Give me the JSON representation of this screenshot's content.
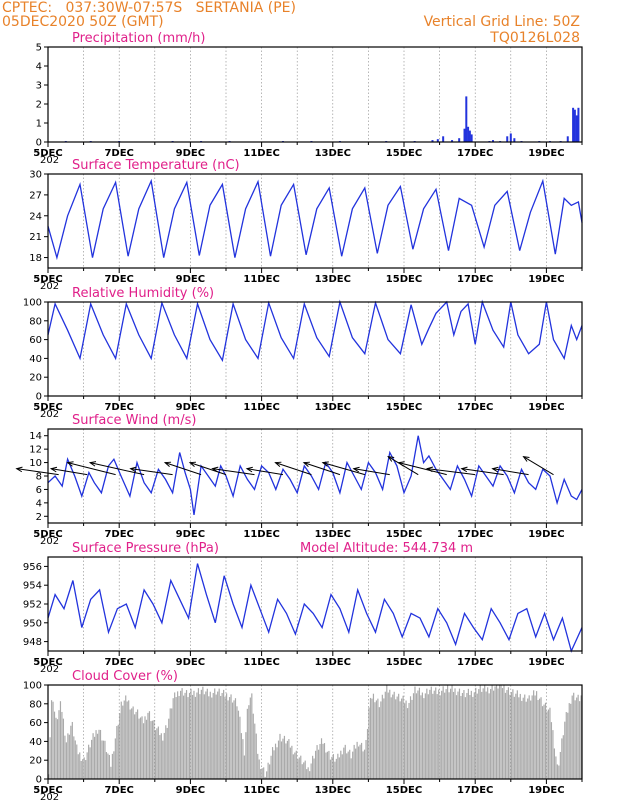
{
  "header": {
    "line1_left": "CPTEC:   037:30W-07:57S   SERTANIA (PE)",
    "line2_left": "05DEC2020 50Z (GMT)",
    "line1_right": "Vertical Grid Line: 50Z",
    "line2_right": "TQ0126L028"
  },
  "x_tick_labels": [
    "5DEC",
    "7DEC",
    "9DEC",
    "11DEC",
    "13DEC",
    "15DEC",
    "17DEC",
    "19DEC"
  ],
  "x_sublabel": "202",
  "colors": {
    "header": "#e8822a",
    "panel_title": "#e0208a",
    "series": "#2233dd",
    "cloud": "#aaaaaa",
    "arrow": "#000000"
  },
  "chart_data": [
    {
      "type": "bar",
      "id": "precip",
      "title": "Precipitation (mm/h)",
      "ylim": [
        0,
        5
      ],
      "yticks": [
        0,
        1,
        2,
        3,
        4,
        5
      ],
      "x_range_days": [
        5,
        20
      ],
      "grid": "vertical dashed",
      "series": [
        {
          "x": [
            5.5,
            6.2,
            7.0,
            8.5,
            9.3,
            10.1,
            11.6,
            12.4,
            13.2,
            14.5,
            15.3,
            15.8,
            15.95,
            16.1,
            16.35,
            16.55,
            16.7,
            16.75,
            16.8,
            16.85,
            16.9,
            17.4,
            17.5,
            17.7,
            17.9,
            18.0,
            18.1,
            18.3,
            18.8,
            19.1,
            19.4,
            19.6,
            19.75,
            19.8,
            19.85,
            19.9
          ],
          "values": [
            0.05,
            0.05,
            0.05,
            0.05,
            0.05,
            0.05,
            0.05,
            0.05,
            0.05,
            0.05,
            0.05,
            0.1,
            0.15,
            0.3,
            0.1,
            0.2,
            0.7,
            2.4,
            0.8,
            0.6,
            0.4,
            0.05,
            0.1,
            0.05,
            0.3,
            0.45,
            0.2,
            0.05,
            0.05,
            0.05,
            0.05,
            0.3,
            1.8,
            1.7,
            1.4,
            1.8
          ]
        }
      ]
    },
    {
      "type": "line",
      "id": "temp",
      "title": "Surface Temperature (nC)",
      "ylim": [
        16.5,
        30
      ],
      "yticks": [
        18,
        21,
        24,
        27,
        30
      ],
      "x_range_days": [
        5,
        20
      ],
      "grid": "vertical dashed",
      "series": [
        {
          "x": [
            5.0,
            5.25,
            5.55,
            5.9,
            6.25,
            6.55,
            6.9,
            7.25,
            7.55,
            7.9,
            8.25,
            8.55,
            8.9,
            9.25,
            9.55,
            9.9,
            10.25,
            10.55,
            10.9,
            11.25,
            11.55,
            11.9,
            12.25,
            12.55,
            12.9,
            13.25,
            13.55,
            13.9,
            14.25,
            14.55,
            14.9,
            15.25,
            15.55,
            15.9,
            16.25,
            16.55,
            16.9,
            17.25,
            17.55,
            17.9,
            18.25,
            18.55,
            18.9,
            19.25,
            19.5,
            19.7,
            19.9,
            20.0
          ],
          "values": [
            22.5,
            18.0,
            24.0,
            28.5,
            18.0,
            25.0,
            28.8,
            18.2,
            25.0,
            29.0,
            18.0,
            25.0,
            28.8,
            18.3,
            25.5,
            28.5,
            18.0,
            25.0,
            28.9,
            18.2,
            25.5,
            28.5,
            18.4,
            25.0,
            28.0,
            18.2,
            25.0,
            28.0,
            18.6,
            25.5,
            28.2,
            19.2,
            25.0,
            27.8,
            19.0,
            26.5,
            25.5,
            19.5,
            25.5,
            27.5,
            19.0,
            24.5,
            29.0,
            18.5,
            26.5,
            25.5,
            26.0,
            23.0
          ]
        }
      ]
    },
    {
      "type": "line",
      "id": "rh",
      "title": "Relative Humidity (%)",
      "ylim": [
        0,
        100
      ],
      "yticks": [
        0,
        20,
        40,
        60,
        80,
        100
      ],
      "x_range_days": [
        5,
        20
      ],
      "grid": "vertical dashed",
      "series": [
        {
          "x": [
            5.0,
            5.2,
            5.55,
            5.9,
            6.2,
            6.55,
            6.9,
            7.2,
            7.55,
            7.9,
            8.2,
            8.55,
            8.9,
            9.2,
            9.55,
            9.9,
            10.2,
            10.55,
            10.9,
            11.2,
            11.55,
            11.9,
            12.2,
            12.55,
            12.9,
            13.2,
            13.55,
            13.9,
            14.2,
            14.55,
            14.9,
            15.2,
            15.5,
            15.7,
            15.9,
            16.2,
            16.4,
            16.6,
            16.8,
            17.0,
            17.2,
            17.5,
            17.8,
            18.0,
            18.2,
            18.5,
            18.8,
            19.0,
            19.2,
            19.5,
            19.7,
            19.85,
            20.0
          ],
          "values": [
            65,
            98,
            70,
            40,
            98,
            65,
            40,
            98,
            65,
            40,
            99,
            65,
            40,
            98,
            60,
            38,
            98,
            60,
            40,
            99,
            62,
            40,
            98,
            62,
            42,
            100,
            62,
            45,
            99,
            60,
            45,
            97,
            55,
            72,
            88,
            100,
            65,
            90,
            98,
            55,
            100,
            70,
            52,
            100,
            65,
            45,
            55,
            100,
            60,
            40,
            75,
            60,
            75
          ]
        }
      ]
    },
    {
      "type": "line",
      "id": "wind",
      "title": "Surface Wind (m/s)",
      "ylim": [
        1,
        15
      ],
      "yticks": [
        2,
        4,
        6,
        8,
        10,
        12,
        14
      ],
      "x_range_days": [
        5,
        20
      ],
      "grid": "vertical dashed",
      "series": [
        {
          "x": [
            5.0,
            5.2,
            5.4,
            5.55,
            5.75,
            5.95,
            6.15,
            6.3,
            6.5,
            6.7,
            6.85,
            7.05,
            7.3,
            7.5,
            7.7,
            7.9,
            8.1,
            8.3,
            8.5,
            8.7,
            8.85,
            9.0,
            9.1,
            9.3,
            9.5,
            9.7,
            9.85,
            10.0,
            10.2,
            10.4,
            10.6,
            10.8,
            11.0,
            11.2,
            11.4,
            11.6,
            11.8,
            12.0,
            12.2,
            12.4,
            12.6,
            12.8,
            13.0,
            13.2,
            13.4,
            13.6,
            13.8,
            14.0,
            14.2,
            14.4,
            14.6,
            14.8,
            15.0,
            15.2,
            15.4,
            15.55,
            15.7,
            15.9,
            16.1,
            16.3,
            16.5,
            16.7,
            16.9,
            17.1,
            17.3,
            17.5,
            17.7,
            17.9,
            18.1,
            18.3,
            18.5,
            18.7,
            18.9,
            19.1,
            19.3,
            19.5,
            19.7,
            19.85,
            20.0
          ],
          "values": [
            7.0,
            8.0,
            6.5,
            10.5,
            8.0,
            5.0,
            8.5,
            7.0,
            5.5,
            9.5,
            10.5,
            8.0,
            5.0,
            10.0,
            7.0,
            5.5,
            9.0,
            7.5,
            5.5,
            11.5,
            8.5,
            6.0,
            2.2,
            9.5,
            8.0,
            6.5,
            9.5,
            8.0,
            5.0,
            9.5,
            7.5,
            6.0,
            9.5,
            8.5,
            6.0,
            9.0,
            7.5,
            5.5,
            9.5,
            8.0,
            6.0,
            10.0,
            8.5,
            5.5,
            10.0,
            8.0,
            6.0,
            10.0,
            8.5,
            6.0,
            11.5,
            9.5,
            5.5,
            8.0,
            14.0,
            10.0,
            11.0,
            9.0,
            7.5,
            6.0,
            9.5,
            7.5,
            5.0,
            9.5,
            8.0,
            6.5,
            9.5,
            8.0,
            5.5,
            9.0,
            7.0,
            6.0,
            9.0,
            8.0,
            4.0,
            7.5,
            5.0,
            4.5,
            6.0
          ]
        }
      ],
      "vectors": {
        "x": [
          5.3,
          6.1,
          6.9,
          7.7,
          8.5,
          9.3,
          10.0,
          10.8,
          11.6,
          12.4,
          13.2,
          13.9,
          14.6,
          15.4,
          16.2,
          17.0,
          17.8,
          18.5,
          19.2
        ],
        "u": [
          -7,
          -6,
          -8,
          -9,
          -7,
          -6,
          -6,
          -7,
          -6,
          -6,
          -6,
          -7,
          -6,
          -5,
          -8,
          -8,
          -7,
          -6,
          -5
        ],
        "v": [
          1,
          1,
          2,
          2,
          1,
          2,
          2,
          1,
          1,
          2,
          2,
          2,
          1,
          3,
          2,
          1,
          1,
          1,
          3
        ]
      }
    },
    {
      "type": "line",
      "id": "pressure",
      "title": "Surface Pressure (hPa)",
      "annotation": "Model Altitude: 544.734 m",
      "ylim": [
        947,
        957
      ],
      "yticks": [
        948,
        950,
        952,
        954,
        956
      ],
      "x_range_days": [
        5,
        20
      ],
      "grid": "vertical dashed",
      "series": [
        {
          "x": [
            5.0,
            5.2,
            5.45,
            5.7,
            5.95,
            6.2,
            6.45,
            6.7,
            6.95,
            7.2,
            7.45,
            7.7,
            7.95,
            8.2,
            8.45,
            8.7,
            8.95,
            9.2,
            9.45,
            9.7,
            9.95,
            10.2,
            10.45,
            10.7,
            10.95,
            11.2,
            11.45,
            11.7,
            11.95,
            12.2,
            12.45,
            12.7,
            12.95,
            13.2,
            13.45,
            13.7,
            13.95,
            14.2,
            14.45,
            14.7,
            14.95,
            15.2,
            15.45,
            15.7,
            15.95,
            16.2,
            16.45,
            16.7,
            16.95,
            17.2,
            17.45,
            17.7,
            17.95,
            18.2,
            18.45,
            18.7,
            18.95,
            19.2,
            19.45,
            19.7,
            20.0
          ],
          "values": [
            950.5,
            953.0,
            951.5,
            954.5,
            949.5,
            952.5,
            953.5,
            949.0,
            951.5,
            952.0,
            949.5,
            953.5,
            952.0,
            950.0,
            954.5,
            952.5,
            950.5,
            956.3,
            953.0,
            950.0,
            955.0,
            952.0,
            949.5,
            954.0,
            951.5,
            949.0,
            952.5,
            951.0,
            948.8,
            952.0,
            951.0,
            949.5,
            953.0,
            951.5,
            949.0,
            953.5,
            951.0,
            949.0,
            952.5,
            951.0,
            948.5,
            951.0,
            950.5,
            948.5,
            951.5,
            950.0,
            947.7,
            951.0,
            949.5,
            948.2,
            951.5,
            950.0,
            948.2,
            951.0,
            951.5,
            948.5,
            951.0,
            948.2,
            950.5,
            947.0,
            949.5
          ]
        }
      ]
    },
    {
      "type": "area",
      "id": "cloud",
      "title": "Cloud Cover (%)",
      "ylim": [
        0,
        100
      ],
      "yticks": [
        0,
        20,
        40,
        60,
        80,
        100
      ],
      "x_range_days": [
        5,
        20
      ],
      "grid": "vertical dashed",
      "series": [
        {
          "x": [
            5.0,
            5.1,
            5.2,
            5.35,
            5.5,
            5.65,
            5.8,
            6.0,
            6.2,
            6.4,
            6.6,
            6.75,
            6.9,
            7.05,
            7.2,
            7.35,
            7.5,
            7.65,
            7.8,
            8.0,
            8.2,
            8.35,
            8.5,
            8.7,
            8.9,
            9.1,
            9.3,
            9.5,
            9.7,
            9.9,
            10.1,
            10.3,
            10.5,
            10.6,
            10.7,
            10.9,
            11.1,
            11.3,
            11.5,
            11.7,
            11.9,
            12.1,
            12.3,
            12.5,
            12.7,
            12.9,
            13.1,
            13.3,
            13.5,
            13.7,
            13.9,
            14.0,
            14.1,
            14.3,
            14.5,
            14.7,
            14.9,
            15.1,
            15.3,
            15.5,
            15.7,
            15.9,
            16.1,
            16.3,
            16.5,
            16.7,
            16.9,
            17.1,
            17.3,
            17.5,
            17.7,
            17.9,
            18.1,
            18.3,
            18.5,
            18.7,
            18.9,
            19.1,
            19.3,
            19.5,
            19.7,
            19.9,
            20.0
          ],
          "values": [
            10,
            95,
            60,
            80,
            40,
            60,
            30,
            20,
            40,
            55,
            35,
            15,
            50,
            80,
            85,
            75,
            70,
            60,
            72,
            55,
            45,
            60,
            85,
            95,
            90,
            92,
            95,
            90,
            94,
            90,
            88,
            80,
            30,
            80,
            90,
            20,
            5,
            30,
            45,
            40,
            30,
            20,
            10,
            30,
            40,
            25,
            20,
            35,
            25,
            40,
            30,
            75,
            90,
            80,
            95,
            90,
            85,
            80,
            95,
            90,
            95,
            92,
            96,
            95,
            94,
            90,
            92,
            96,
            95,
            98,
            100,
            95,
            90,
            88,
            85,
            92,
            80,
            70,
            10,
            60,
            90,
            85,
            90
          ]
        }
      ]
    }
  ]
}
